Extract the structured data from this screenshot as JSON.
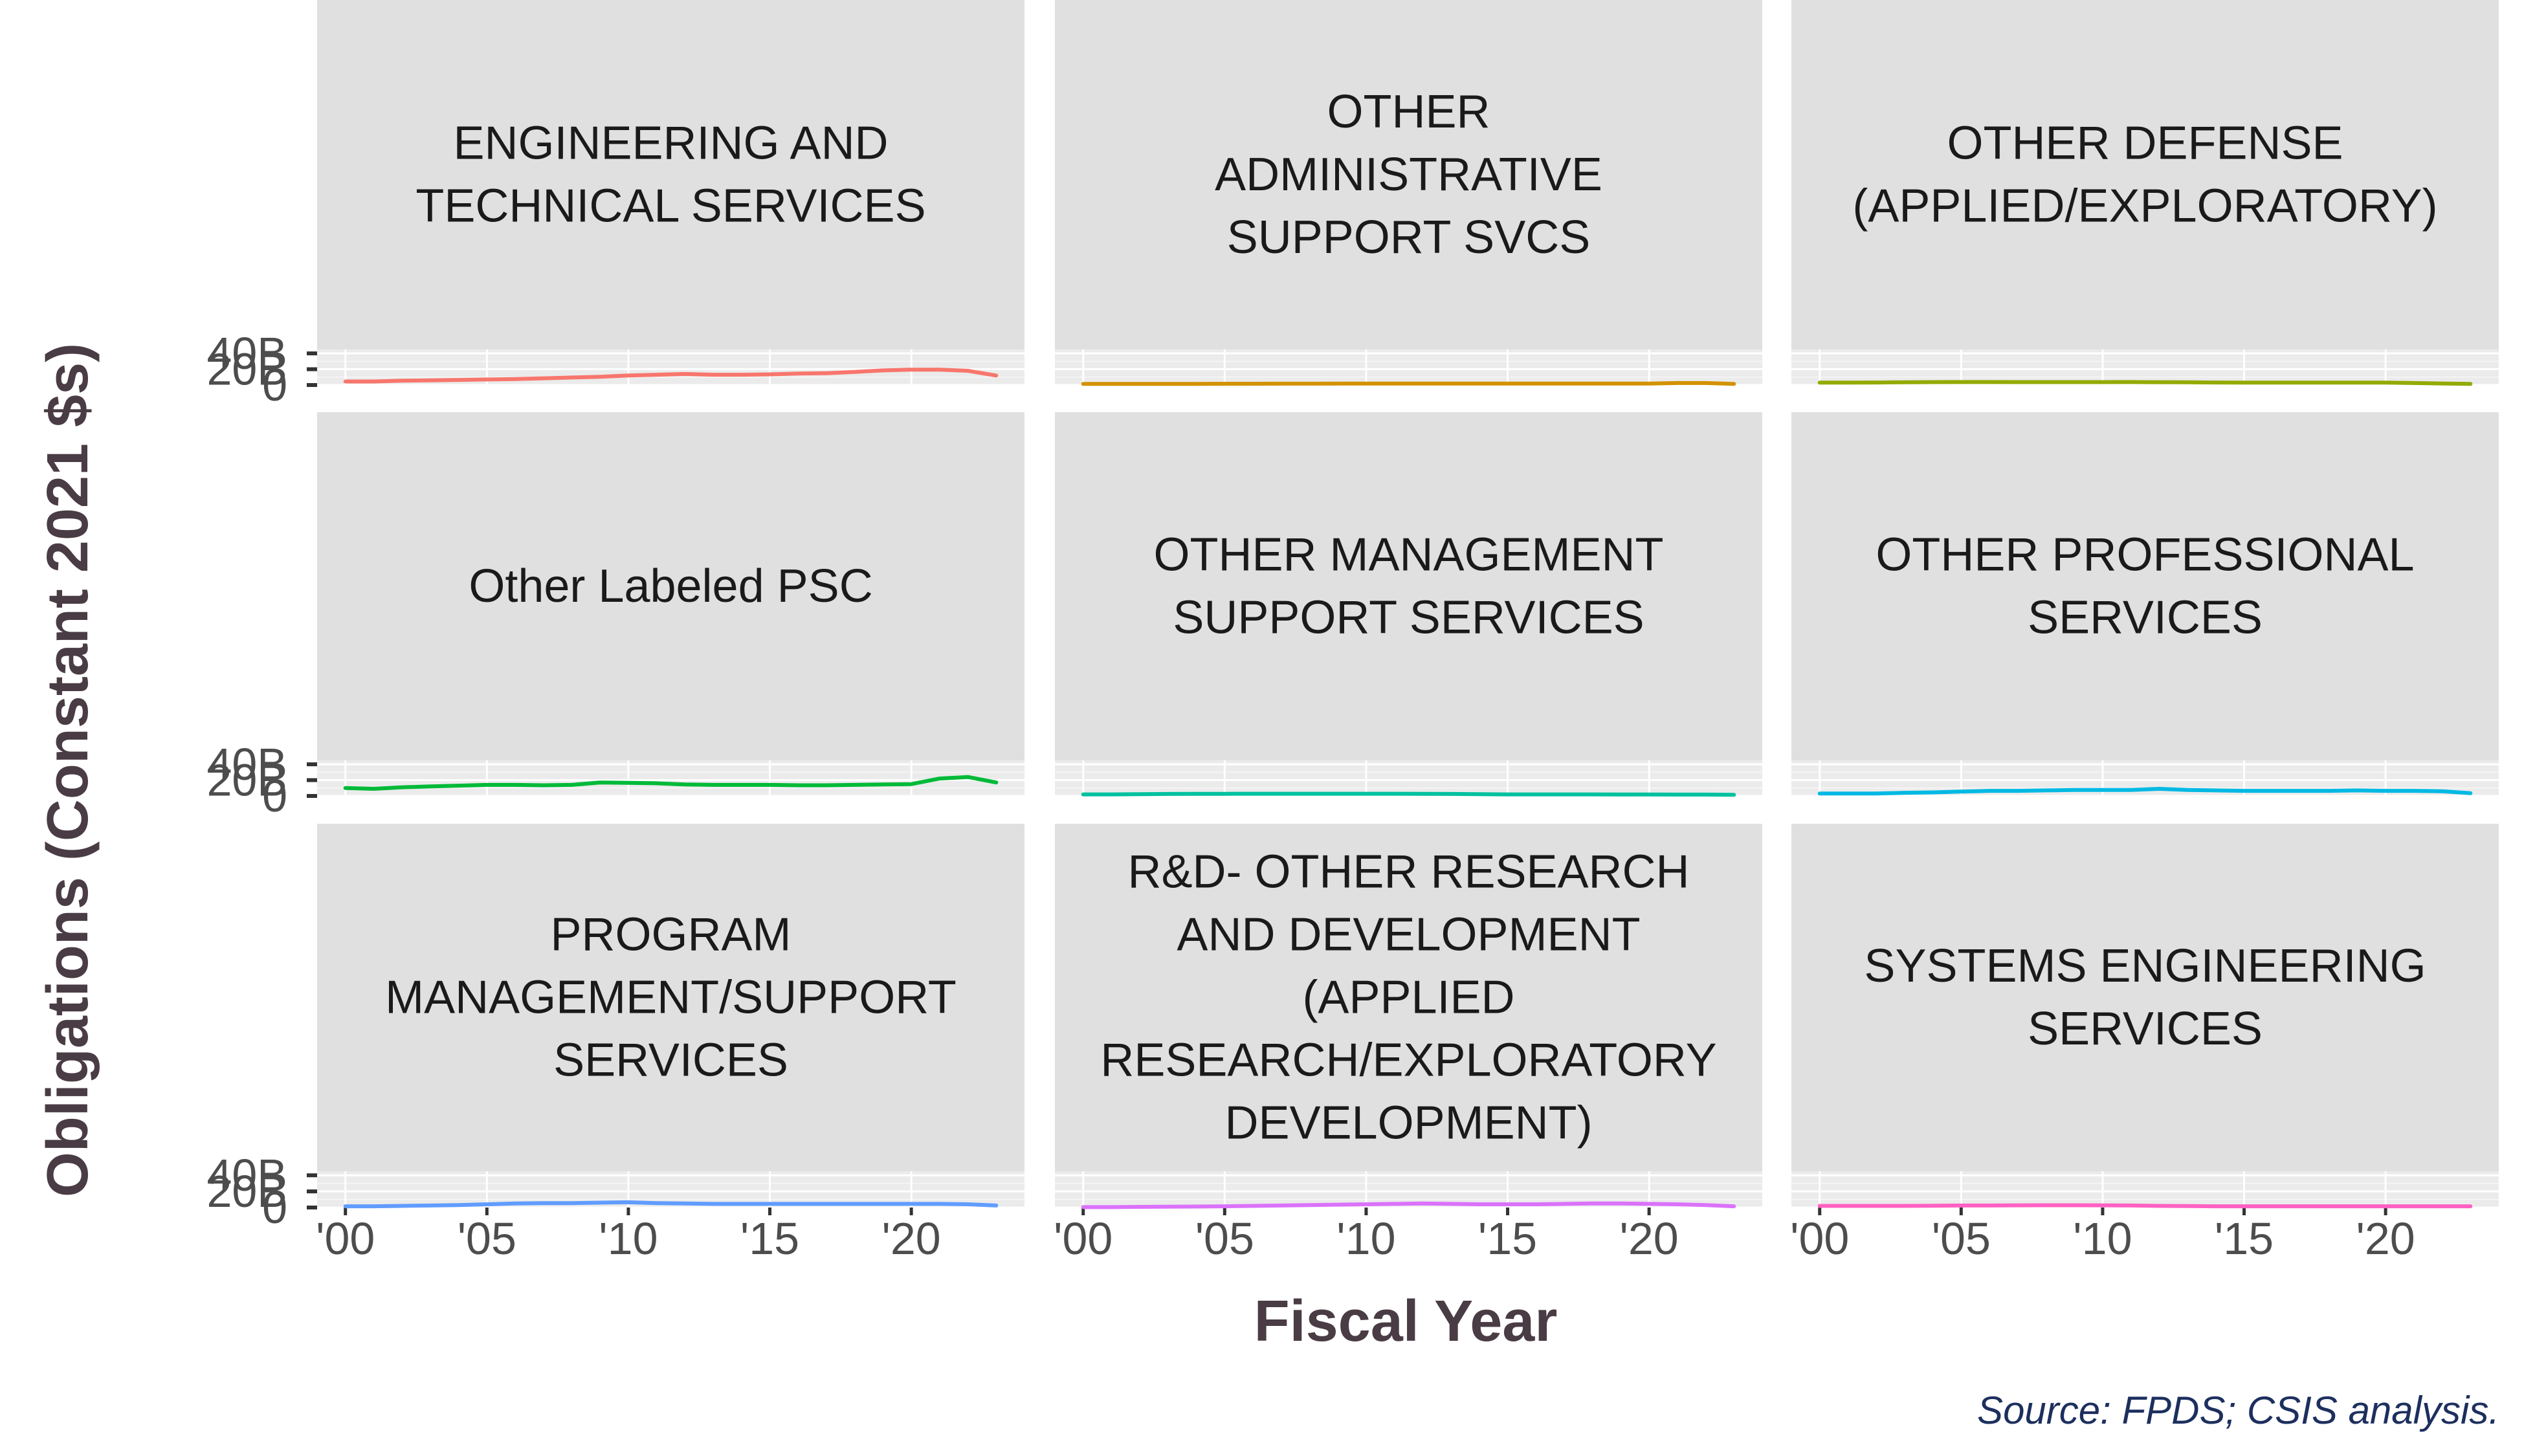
{
  "chart_data": {
    "type": "line",
    "ylabel": "Obligations (Constant 2021 $s)",
    "xlabel": "Fiscal Year",
    "caption": "Source: FPDS; CSIS analysis.",
    "x": [
      2000,
      2001,
      2002,
      2003,
      2004,
      2005,
      2006,
      2007,
      2008,
      2009,
      2010,
      2011,
      2012,
      2013,
      2014,
      2015,
      2016,
      2017,
      2018,
      2019,
      2020,
      2021,
      2022,
      2023
    ],
    "x_ticks": [
      2000,
      2005,
      2010,
      2015,
      2020
    ],
    "x_tick_labels": [
      "'00",
      "'05",
      "'10",
      "'15",
      "'20"
    ],
    "xlim": [
      1999,
      2024
    ],
    "y_ticks": [
      0,
      20,
      40
    ],
    "y_tick_labels": [
      "0",
      "20B",
      "40B"
    ],
    "y_unit": "billions",
    "ylim": [
      0,
      45
    ],
    "grid": true,
    "layout": "3x3 facets, shared axes",
    "panels": [
      {
        "title": [
          "ENGINEERING AND",
          "TECHNICAL SERVICES"
        ],
        "color": "#F8766D",
        "values": [
          4.5,
          4.5,
          5.5,
          6,
          6.5,
          7,
          7.5,
          8.5,
          9.5,
          10.5,
          12,
          13,
          14,
          13,
          13,
          13.5,
          14.5,
          15,
          16.5,
          18.5,
          19.5,
          19.5,
          18,
          12
        ]
      },
      {
        "title": [
          "OTHER",
          "ADMINISTRATIVE",
          "SUPPORT SVCS"
        ],
        "color": "#D39200",
        "values": [
          1.5,
          1.5,
          1.5,
          1.5,
          1.5,
          1.6,
          1.6,
          1.7,
          1.7,
          1.8,
          1.8,
          1.8,
          1.8,
          1.8,
          1.8,
          1.8,
          1.8,
          1.8,
          1.8,
          1.8,
          1.8,
          2.5,
          2.5,
          1.5
        ]
      },
      {
        "title": [
          "OTHER DEFENSE",
          "(APPLIED/EXPLORATORY)"
        ],
        "color": "#93AA00",
        "values": [
          3,
          3,
          3.2,
          3.5,
          3.7,
          3.8,
          3.8,
          3.7,
          3.7,
          3.7,
          3.7,
          3.8,
          3.6,
          3.5,
          3.2,
          3.0,
          3.0,
          3.0,
          3.0,
          3.0,
          3.0,
          2.5,
          2.0,
          1.5
        ]
      },
      {
        "title": [
          "Other Labeled PSC"
        ],
        "color": "#00BA38",
        "values": [
          10,
          9,
          11,
          12,
          13,
          14,
          14,
          13.5,
          14,
          17,
          16.5,
          16,
          14.5,
          14,
          14,
          14,
          13.5,
          13.5,
          14,
          14.5,
          15,
          22,
          24,
          17
        ]
      },
      {
        "title": [
          "OTHER MANAGEMENT",
          "SUPPORT SERVICES"
        ],
        "color": "#00C19F",
        "values": [
          2,
          2,
          2.2,
          2.5,
          2.7,
          2.7,
          2.8,
          2.8,
          2.8,
          2.8,
          2.8,
          2.8,
          2.7,
          2.5,
          2.2,
          2.0,
          2.0,
          2.0,
          2.0,
          1.8,
          1.8,
          1.7,
          1.7,
          1.5
        ]
      },
      {
        "title": [
          "OTHER PROFESSIONAL",
          "SERVICES"
        ],
        "color": "#00B9E3",
        "values": [
          3,
          3,
          3,
          4,
          4.5,
          5.5,
          6.5,
          6.5,
          7,
          7.5,
          7.5,
          7.5,
          9,
          7.5,
          7,
          6.5,
          6.5,
          6.5,
          6.5,
          7,
          6.5,
          6.5,
          6,
          3.5
        ]
      },
      {
        "title": [
          "PROGRAM",
          "MANAGEMENT/SUPPORT",
          "SERVICES"
        ],
        "color": "#619CFF",
        "values": [
          1.5,
          1.5,
          2.0,
          2.5,
          3,
          4,
          5,
          5.5,
          5.5,
          6.0,
          6.5,
          5.5,
          5.0,
          4.5,
          4.5,
          4.5,
          4.5,
          4.5,
          4.5,
          4.5,
          4.5,
          4.5,
          4.0,
          2.5
        ]
      },
      {
        "title": [
          "R&D- OTHER RESEARCH",
          "AND DEVELOPMENT",
          "(APPLIED",
          "RESEARCH/EXPLORATORY",
          "DEVELOPMENT)"
        ],
        "color": "#DB72FB",
        "values": [
          0.5,
          0.5,
          0.8,
          1.0,
          1.2,
          1.5,
          2.0,
          2.5,
          3.0,
          3.5,
          4.0,
          4.5,
          5.0,
          4.5,
          4.0,
          4.0,
          4.0,
          4.5,
          5.0,
          5.0,
          4.5,
          4.0,
          3.0,
          1.5
        ]
      },
      {
        "title": [
          "SYSTEMS ENGINEERING",
          "SERVICES"
        ],
        "color": "#FF61C3",
        "values": [
          2.0,
          2.0,
          2.0,
          2.0,
          2.2,
          2.5,
          2.5,
          2.7,
          2.8,
          2.8,
          2.7,
          2.5,
          2.0,
          1.8,
          1.5,
          1.5,
          1.5,
          1.5,
          1.5,
          1.5,
          1.5,
          1.5,
          1.5,
          1.5
        ]
      }
    ]
  }
}
